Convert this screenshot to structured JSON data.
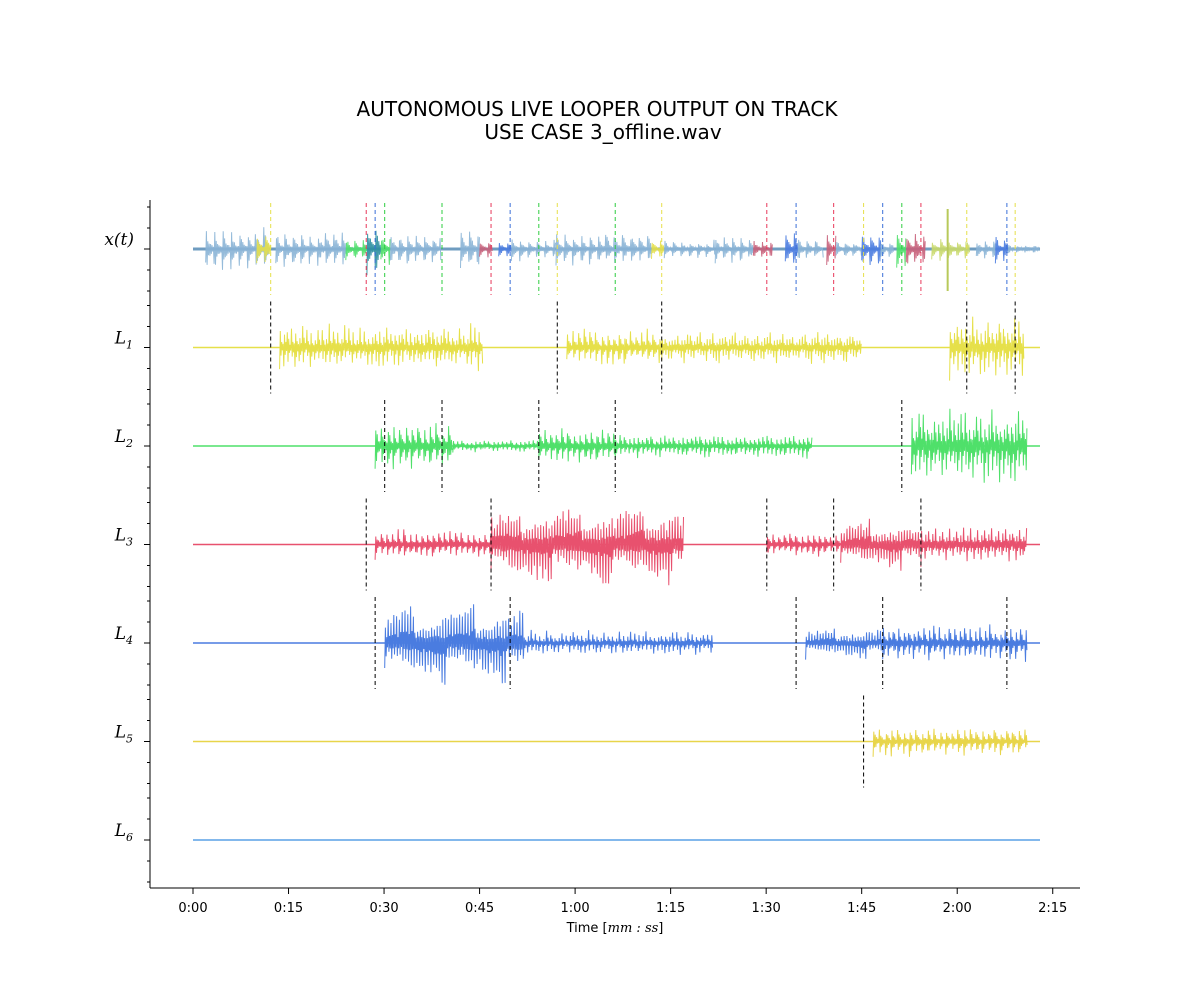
{
  "chart_data": {
    "type": "line",
    "title": [
      "AUTONOMOUS LIVE LOOPER OUTPUT ON TRACK",
      "USE CASE 3_offline.wav"
    ],
    "xlabel_prefix": "Time [",
    "xlabel_math": "mm : ss",
    "xlabel_suffix": "]",
    "xlim_seconds": [
      -5,
      140
    ],
    "x_ticks_seconds": [
      0,
      15,
      30,
      45,
      60,
      75,
      90,
      105,
      120,
      135
    ],
    "x_tick_labels": [
      "0:00",
      "0:15",
      "0:30",
      "0:45",
      "1:00",
      "1:15",
      "1:30",
      "1:45",
      "2:00",
      "2:15"
    ],
    "duration_seconds": 133,
    "tracks": [
      {
        "label": "x(t)",
        "color": "#8ab4d6",
        "segments": [],
        "markers": [
          {
            "t": 12.2,
            "color": "#e6e04a"
          },
          {
            "t": 27.2,
            "color": "#e8385a"
          },
          {
            "t": 28.6,
            "color": "#3a6fd8"
          },
          {
            "t": 30.1,
            "color": "#2ecc40"
          },
          {
            "t": 39.1,
            "color": "#2ecc40"
          },
          {
            "t": 46.8,
            "color": "#e8385a"
          },
          {
            "t": 49.8,
            "color": "#3a6fd8"
          },
          {
            "t": 54.3,
            "color": "#2ecc40"
          },
          {
            "t": 57.2,
            "color": "#e6e04a"
          },
          {
            "t": 66.3,
            "color": "#2ecc40"
          },
          {
            "t": 73.6,
            "color": "#e6e04a"
          },
          {
            "t": 90.1,
            "color": "#e8385a"
          },
          {
            "t": 94.7,
            "color": "#3a6fd8"
          },
          {
            "t": 100.6,
            "color": "#e8385a"
          },
          {
            "t": 105.3,
            "color": "#e6e04a"
          },
          {
            "t": 108.3,
            "color": "#3a6fd8"
          },
          {
            "t": 111.3,
            "color": "#2ecc40"
          },
          {
            "t": 114.3,
            "color": "#e8385a"
          },
          {
            "t": 121.5,
            "color": "#e6e04a"
          },
          {
            "t": 127.8,
            "color": "#3a6fd8"
          },
          {
            "t": 129.1,
            "color": "#e6e04a"
          }
        ]
      },
      {
        "label": "L",
        "sub": "1",
        "color": "#e6e04a",
        "segments": [
          {
            "start": 13.6,
            "end": 45.5,
            "amp": 0.55,
            "period": 0.6
          },
          {
            "start": 58.7,
            "end": 73.6,
            "amp": 0.45,
            "period": 0.9
          },
          {
            "start": 73.6,
            "end": 105.0,
            "amp": 0.4,
            "period": 0.5
          },
          {
            "start": 118.8,
            "end": 130.5,
            "amp": 0.75,
            "period": 0.6
          }
        ],
        "markers": [
          {
            "t": 12.2
          },
          {
            "t": 57.2
          },
          {
            "t": 73.6
          },
          {
            "t": 121.5
          },
          {
            "t": 129.1
          }
        ]
      },
      {
        "label": "L",
        "sub": "2",
        "color": "#4fe06a",
        "segments": [
          {
            "start": 28.6,
            "end": 40.8,
            "amp": 0.6,
            "period": 0.95
          },
          {
            "start": 40.8,
            "end": 54.3,
            "amp": 0.15,
            "period": 0.7
          },
          {
            "start": 54.3,
            "end": 66.3,
            "amp": 0.45,
            "period": 0.9
          },
          {
            "start": 66.3,
            "end": 97.2,
            "amp": 0.3,
            "period": 0.7
          },
          {
            "start": 112.8,
            "end": 131.0,
            "amp": 0.95,
            "period": 0.6
          }
        ],
        "markers": [
          {
            "t": 30.1
          },
          {
            "t": 39.1
          },
          {
            "t": 54.3
          },
          {
            "t": 66.3
          },
          {
            "t": 111.3
          }
        ]
      },
      {
        "label": "L",
        "sub": "3",
        "color": "#e8516e",
        "segments": [
          {
            "start": 28.6,
            "end": 46.8,
            "amp": 0.35,
            "period": 0.9
          },
          {
            "start": 46.8,
            "end": 77.1,
            "amp": 1.0,
            "period": 0.45
          },
          {
            "start": 90.1,
            "end": 101.7,
            "amp": 0.3,
            "period": 0.9
          },
          {
            "start": 101.7,
            "end": 114.3,
            "amp": 0.6,
            "period": 0.45
          },
          {
            "start": 114.3,
            "end": 131.0,
            "amp": 0.55,
            "period": 0.55
          }
        ],
        "markers": [
          {
            "t": 27.2
          },
          {
            "t": 46.8
          },
          {
            "t": 90.1
          },
          {
            "t": 100.6
          },
          {
            "t": 114.3
          }
        ]
      },
      {
        "label": "L",
        "sub": "4",
        "color": "#4a7ce0",
        "segments": [
          {
            "start": 30.1,
            "end": 51.9,
            "amp": 0.95,
            "period": 0.45
          },
          {
            "start": 51.9,
            "end": 81.6,
            "amp": 0.3,
            "period": 0.6
          },
          {
            "start": 96.2,
            "end": 108.3,
            "amp": 0.4,
            "period": 0.45
          },
          {
            "start": 108.3,
            "end": 131.0,
            "amp": 0.45,
            "period": 0.8
          }
        ],
        "markers": [
          {
            "t": 28.6
          },
          {
            "t": 49.8
          },
          {
            "t": 94.7
          },
          {
            "t": 108.3
          },
          {
            "t": 127.8
          }
        ]
      },
      {
        "label": "L",
        "sub": "5",
        "color": "#e8d54a",
        "segments": [
          {
            "start": 106.8,
            "end": 131.0,
            "amp": 0.35,
            "period": 0.95
          }
        ],
        "markers": [
          {
            "t": 105.3
          }
        ]
      },
      {
        "label": "L",
        "sub": "6",
        "color": "#5aa0e6",
        "segments": [],
        "markers": []
      }
    ],
    "grid": false,
    "legend": "none"
  }
}
